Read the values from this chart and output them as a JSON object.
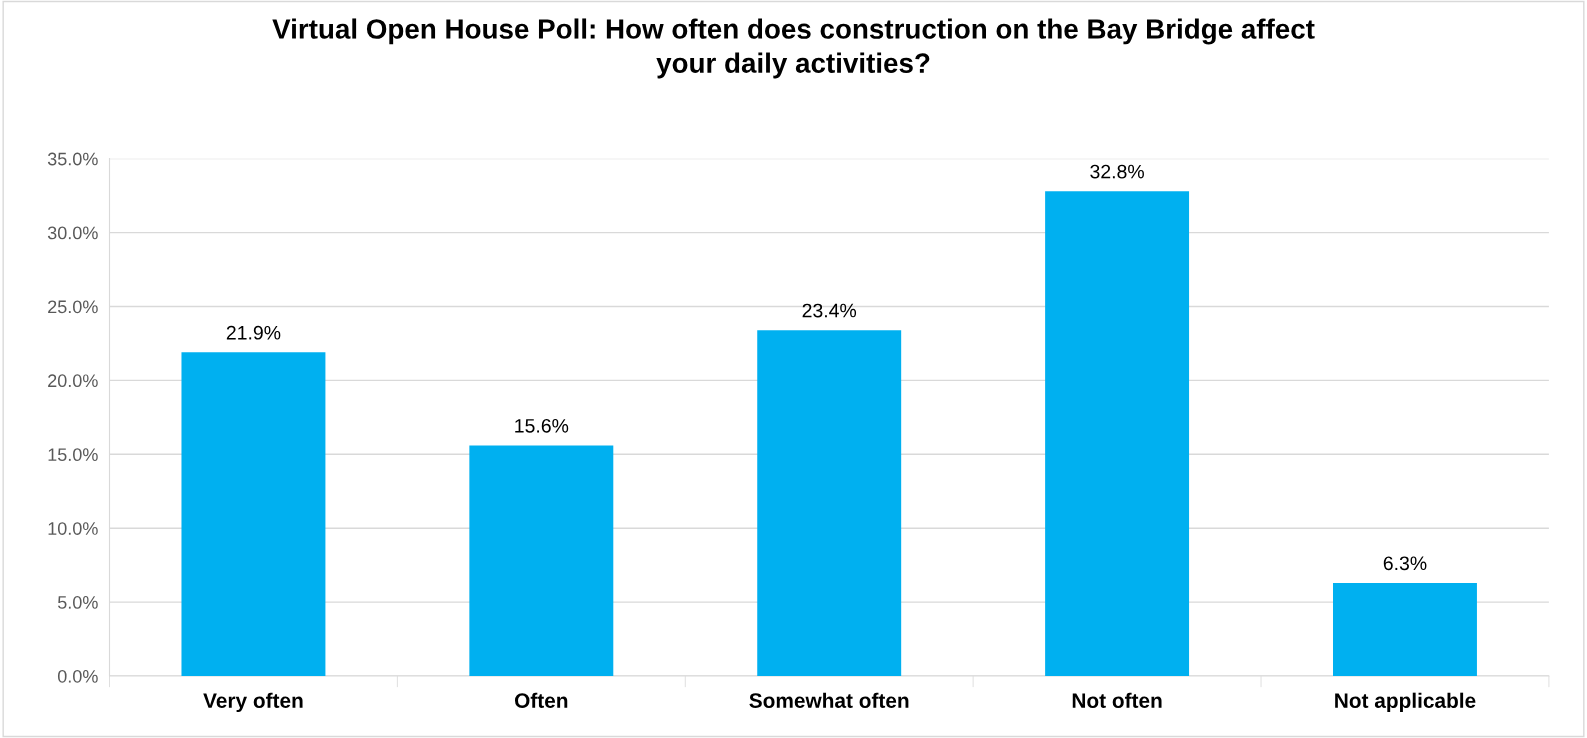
{
  "chart_data": {
    "type": "bar",
    "title": "Virtual Open House Poll: How often does construction on the Bay Bridge affect\nyour daily activities?",
    "categories": [
      "Very often",
      "Often",
      "Somewhat often",
      "Not often",
      "Not applicable"
    ],
    "values": [
      21.9,
      15.6,
      23.4,
      32.8,
      6.3
    ],
    "value_labels": [
      "21.9%",
      "15.6%",
      "23.4%",
      "32.8%",
      "6.3%"
    ],
    "color": "#00b0f0",
    "ylim": [
      0,
      35
    ],
    "yticks": [
      {
        "value": 0,
        "label": "0.0%"
      },
      {
        "value": 5,
        "label": "5.0%"
      },
      {
        "value": 10,
        "label": "10.0%"
      },
      {
        "value": 15,
        "label": "15.0%"
      },
      {
        "value": 20,
        "label": "20.0%"
      },
      {
        "value": 25,
        "label": "25.0%"
      },
      {
        "value": 30,
        "label": "30.0%"
      },
      {
        "value": 35,
        "label": "35.0%"
      }
    ],
    "grid": "y"
  }
}
